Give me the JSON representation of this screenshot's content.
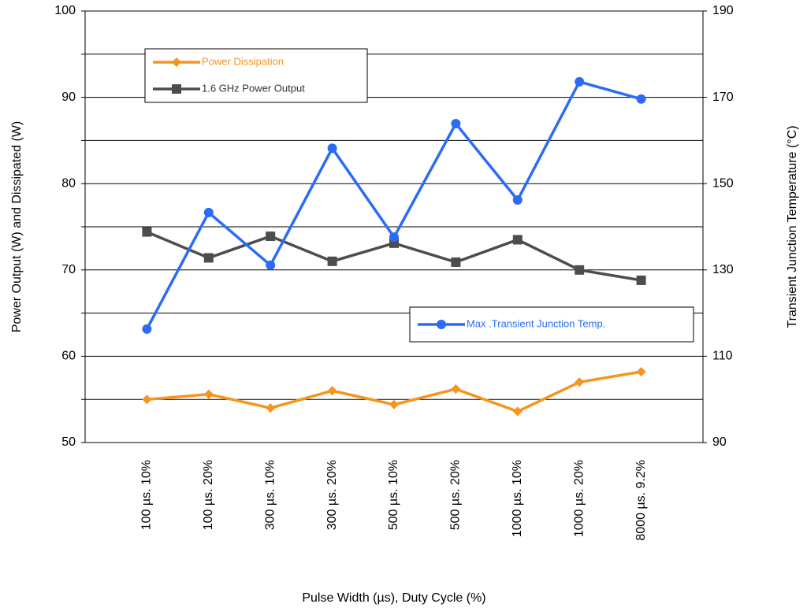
{
  "chart_data": {
    "type": "line",
    "x_label": "Pulse Width (µs), Duty Cycle (%)",
    "y_label": "Power Output (W) and Dissipated (W)",
    "y2_label": "Transient Junction Temperature (°C)",
    "categories": [
      "100 µs. 10%",
      "100 µs. 20%",
      "300 µs. 10%",
      "300 µs. 20%",
      "500 µs. 10%",
      "500 µs. 20%",
      "1000 µs. 10%",
      "1000 µs. 20%",
      "8000 µs. 9.2%"
    ],
    "series": [
      {
        "name": "Power Dissipation",
        "color": "#f7941d",
        "marker": "diamond",
        "values": [
          55.0,
          55.6,
          54.0,
          56.0,
          54.4,
          56.2,
          53.6,
          57.0,
          58.2
        ]
      },
      {
        "name": "1.6 GHz Power Output",
        "color": "#4d4d4d",
        "marker": "square",
        "values": [
          74.4,
          71.4,
          73.9,
          71.0,
          73.1,
          70.9,
          73.5,
          70.0,
          68.8
        ]
      },
      {
        "name": "Max .Transient Junction Temp.",
        "color": "#2b6cf6",
        "marker": "circle",
        "axis": "y2",
        "values": [
          116.3,
          143.3,
          131.1,
          158.2,
          137.6,
          163.9,
          146.2,
          173.6,
          169.6
        ]
      }
    ],
    "ylim": [
      50,
      100
    ],
    "yticks": [
      50,
      60,
      70,
      80,
      90,
      100
    ],
    "minor_yticks": [
      55,
      65,
      75,
      85,
      95
    ],
    "y2lim": [
      90,
      190
    ],
    "y2ticks": [
      90,
      110,
      130,
      150,
      170,
      190
    ],
    "grid": true
  }
}
